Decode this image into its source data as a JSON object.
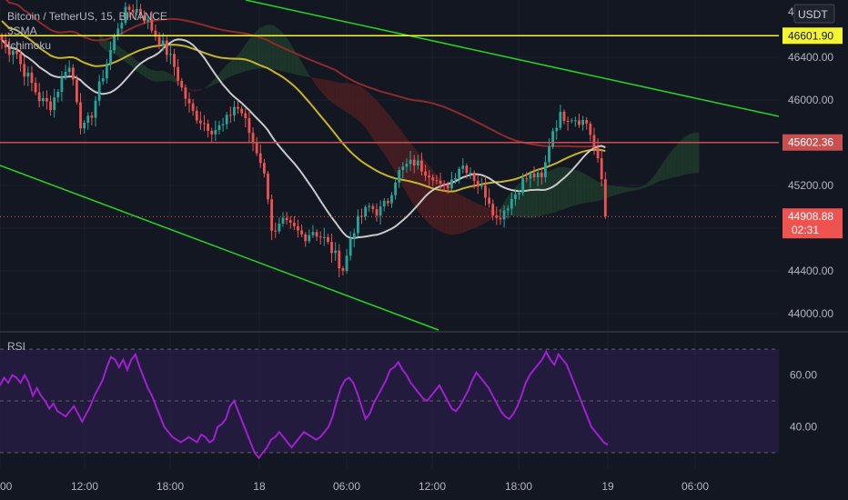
{
  "chart": {
    "symbol": "Bitcoin / TetherUS, 15, BINANCE",
    "indicators": [
      "3SMA",
      "Ichimoku"
    ],
    "currency": "USDT",
    "rsi_label": "RSI",
    "countdown": "02:31"
  },
  "colors": {
    "background": "#131722",
    "up": "#26a69a",
    "down": "#ef5350",
    "ma_fast": "#c9c9c9",
    "ma_mid": "#c8b428",
    "ma_slow": "#8e2a2a",
    "cloud_bull": "#1f3a2a",
    "cloud_bear": "#4a1f22",
    "trendline": "#22d622",
    "yellow_line": "#f5f533",
    "red_line": "#c85050",
    "rsi_line": "#a020d0",
    "rsi_band": "#2a1e4a"
  },
  "chart_data": {
    "type": "candlestick",
    "title": "Bitcoin / TetherUS, 15, BINANCE",
    "price_ticks": [
      44000,
      44400,
      44800,
      45200,
      45600,
      46000,
      46400
    ],
    "price_labels": [
      "44000.00",
      "44400.00",
      "44800.00",
      "45200.00",
      "45600.00",
      "46000.00",
      "46400.00"
    ],
    "price_range": [
      43900,
      46900
    ],
    "time_labels": [
      "00",
      "12:00",
      "18:00",
      "18",
      "06:00",
      "12:00",
      "18:00",
      "19",
      "06:00"
    ],
    "horizontal_lines": [
      {
        "price": 46601.9,
        "label": "46601.90",
        "color": "#f5f533"
      },
      {
        "price": 45602.36,
        "label": "45602.36",
        "color": "#c85050"
      }
    ],
    "last_price": {
      "price": 44908.88,
      "label": "44908.88"
    },
    "rsi": {
      "ticks": [
        40,
        60
      ],
      "tick_labels": [
        "40.00",
        "60.00"
      ],
      "levels": [
        30,
        50,
        70
      ],
      "range": [
        24,
        76
      ],
      "values": [
        56,
        59,
        57,
        60,
        59,
        57,
        60,
        57,
        52,
        55,
        52,
        50,
        47,
        49,
        46,
        45,
        44,
        46,
        48,
        45,
        42,
        45,
        48,
        52,
        55,
        58,
        63,
        67,
        66,
        63,
        66,
        62,
        66,
        68,
        63,
        59,
        55,
        52,
        48,
        44,
        40,
        38,
        36,
        35,
        34,
        35,
        36,
        35,
        34,
        37,
        36,
        34,
        35,
        40,
        41,
        43,
        48,
        50,
        46,
        42,
        38,
        34,
        30,
        28,
        30,
        32,
        35,
        36,
        38,
        36,
        34,
        32,
        34,
        36,
        38,
        37,
        36,
        35,
        36,
        38,
        40,
        44,
        50,
        55,
        58,
        59,
        57,
        53,
        48,
        43,
        45,
        49,
        52,
        55,
        58,
        62,
        63,
        65,
        62,
        60,
        57,
        55,
        53,
        51,
        50,
        52,
        54,
        56,
        53,
        50,
        47,
        46,
        48,
        51,
        54,
        58,
        61,
        59,
        57,
        55,
        52,
        49,
        46,
        44,
        43,
        45,
        48,
        52,
        57,
        60,
        62,
        64,
        66,
        69,
        66,
        64,
        68,
        66,
        64,
        60,
        56,
        52,
        48,
        44,
        40,
        38,
        36,
        34,
        33
      ]
    }
  }
}
